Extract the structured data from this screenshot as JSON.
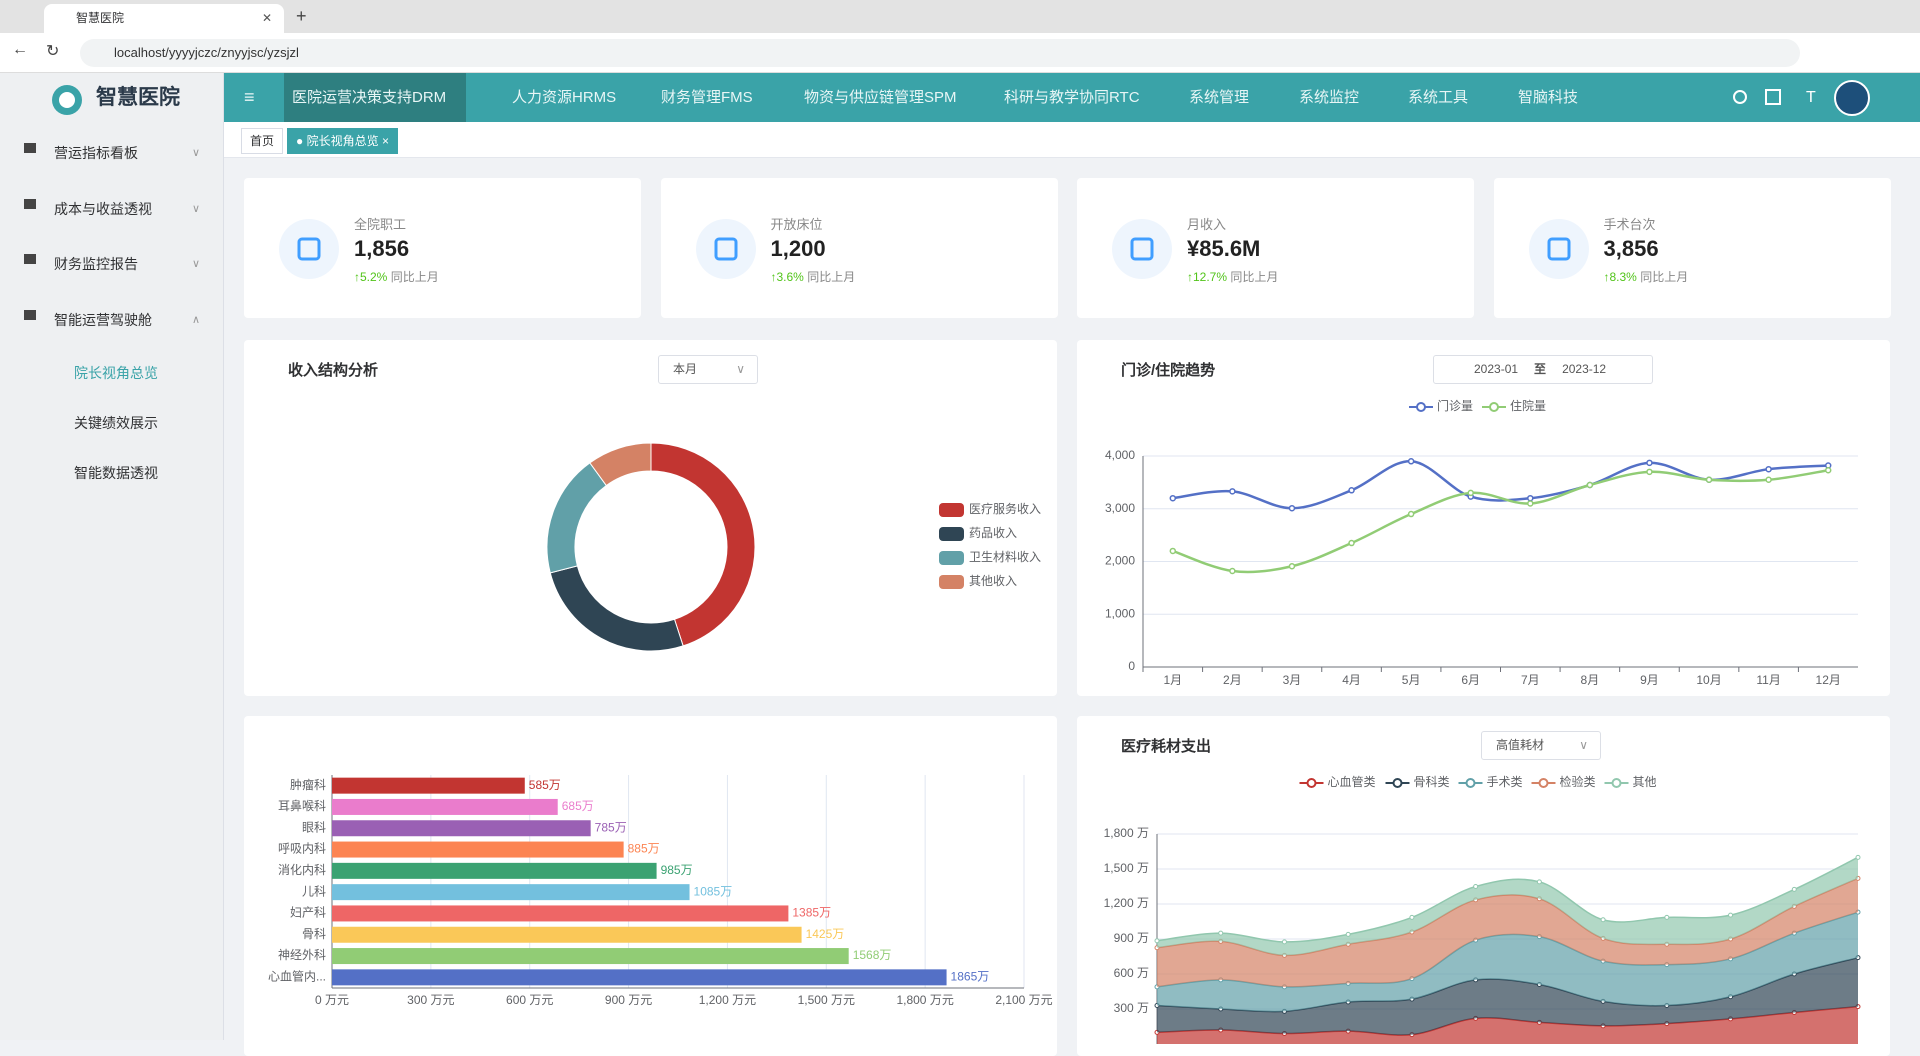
{
  "browser": {
    "tab_title": "智慧医院",
    "url": "localhost/yyyyjczc/znyyjsc/yzsjzl"
  },
  "sidebar": {
    "logo": "智慧医院",
    "menu": [
      "营运指标看板",
      "成本与收益透视",
      "财务监控报告",
      "智能运营驾驶舱"
    ],
    "submenu": [
      "院长视角总览",
      "关键绩效展示",
      "智能数据透视"
    ]
  },
  "topnav": [
    "医院运营决策支持DRM",
    "人力资源HRMS",
    "财务管理FMS",
    "物资与供应链管理SPM",
    "科研与教学协同RTC",
    "系统管理",
    "系统监控",
    "系统工具",
    "智脑科技"
  ],
  "tabs": [
    "首页",
    "院长视角总览"
  ],
  "stats": [
    {
      "label": "全院职工",
      "value": "1,856",
      "change": "↑5.2%",
      "note": "同比上月"
    },
    {
      "label": "开放床位",
      "value": "1,200",
      "change": "↑3.6%",
      "note": "同比上月"
    },
    {
      "label": "月收入",
      "value": "¥85.6M",
      "change": "↑12.7%",
      "note": "同比上月"
    },
    {
      "label": "手术台次",
      "value": "3,856",
      "change": "↑8.3%",
      "note": "同比上月"
    }
  ],
  "chart_data": [
    {
      "type": "pie",
      "donut": true,
      "title": "收入结构分析",
      "dropdown": "本月",
      "categories": [
        "医疗服务收入",
        "药品收入",
        "卫生材料收入",
        "其他收入"
      ],
      "values": [
        45,
        26,
        19,
        10
      ],
      "colors": [
        "#c23531",
        "#2f4554",
        "#61a0a8",
        "#d48265"
      ]
    },
    {
      "type": "line",
      "smooth": true,
      "title": "门诊/住院趋势",
      "date_start": "2023-01",
      "date_sep": "至",
      "date_end": "2023-12",
      "categories": [
        "1月",
        "2月",
        "3月",
        "4月",
        "5月",
        "6月",
        "7月",
        "8月",
        "9月",
        "10月",
        "11月",
        "12月"
      ],
      "series": [
        {
          "name": "门诊量",
          "color": "#5470c6",
          "values": [
            3200,
            3330,
            3010,
            3350,
            3900,
            3230,
            3200,
            3450,
            3870,
            3550,
            3750,
            3820
          ]
        },
        {
          "name": "住院量",
          "color": "#91cc75",
          "values": [
            2200,
            1820,
            1910,
            2350,
            2900,
            3300,
            3100,
            3450,
            3700,
            3550,
            3550,
            3730
          ]
        }
      ],
      "ylim": [
        0,
        4000
      ],
      "yticks": [
        0,
        {
          "value": 1000,
          "label": "1,000"
        },
        {
          "value": 2000,
          "label": "2,000"
        },
        {
          "value": 3000,
          "label": "3,000"
        },
        {
          "value": 4000,
          "label": "4,000"
        }
      ],
      "grid": true
    },
    {
      "type": "bar",
      "orientation": "horizontal",
      "categories": [
        "肿瘤科",
        "耳鼻喉科",
        "眼科",
        "呼吸内科",
        "消化内科",
        "儿科",
        "妇产科",
        "骨科",
        "神经外科",
        "心血管内..."
      ],
      "values": [
        585,
        685,
        785,
        885,
        985,
        1085,
        1385,
        1425,
        1568,
        1865
      ],
      "value_labels": [
        "585万",
        "685万",
        "785万",
        "885万",
        "985万",
        "1085万",
        "1385万",
        "1425万",
        "1568万",
        "1865万"
      ],
      "colors": [
        "#c23531",
        "#ea7ccc",
        "#9a60b4",
        "#fc8452",
        "#3ba272",
        "#73c0de",
        "#ee6666",
        "#fac858",
        "#91cc75",
        "#5470c6"
      ],
      "xlim": [
        0,
        2100
      ],
      "xticks": [
        {
          "value": 0,
          "label": "0 万元"
        },
        {
          "value": 300,
          "label": "300 万元"
        },
        {
          "value": 600,
          "label": "600 万元"
        },
        {
          "value": 900,
          "label": "900 万元"
        },
        {
          "value": 1200,
          "label": "1,200 万元"
        },
        {
          "value": 1500,
          "label": "1,500 万元"
        },
        {
          "value": 1800,
          "label": "1,800 万元"
        },
        {
          "value": 2100,
          "label": "2,100 万元"
        }
      ],
      "grid": true
    },
    {
      "type": "area",
      "stacked": true,
      "smooth": true,
      "title": "医疗耗材支出",
      "dropdown": "高值耗材",
      "series": [
        {
          "name": "心血管类",
          "color": "#c23531",
          "values": [
            100,
            120,
            90,
            110,
            80,
            220,
            185,
            155,
            175,
            215,
            270,
            320
          ]
        },
        {
          "name": "骨科类",
          "color": "#2f4554",
          "values": [
            230,
            180,
            190,
            250,
            305,
            330,
            325,
            210,
            155,
            190,
            330,
            420
          ]
        },
        {
          "name": "手术类",
          "color": "#61a0a8",
          "values": [
            160,
            250,
            210,
            160,
            175,
            340,
            410,
            345,
            350,
            325,
            350,
            390
          ]
        },
        {
          "name": "检验类",
          "color": "#d48265",
          "values": [
            335,
            330,
            270,
            335,
            400,
            345,
            325,
            195,
            175,
            170,
            230,
            290
          ]
        },
        {
          "name": "其他",
          "color": "#91c7ae",
          "values": [
            60,
            70,
            115,
            85,
            125,
            115,
            145,
            160,
            230,
            205,
            145,
            180
          ]
        }
      ],
      "ylim": [
        0,
        1800
      ],
      "yticks": [
        {
          "value": 300,
          "label": "300 万"
        },
        {
          "value": 600,
          "label": "600 万"
        },
        {
          "value": 900,
          "label": "900 万"
        },
        {
          "value": 1200,
          "label": "1,200 万"
        },
        {
          "value": 1500,
          "label": "1,500 万"
        },
        {
          "value": 1800,
          "label": "1,800 万"
        }
      ],
      "grid": true
    }
  ]
}
